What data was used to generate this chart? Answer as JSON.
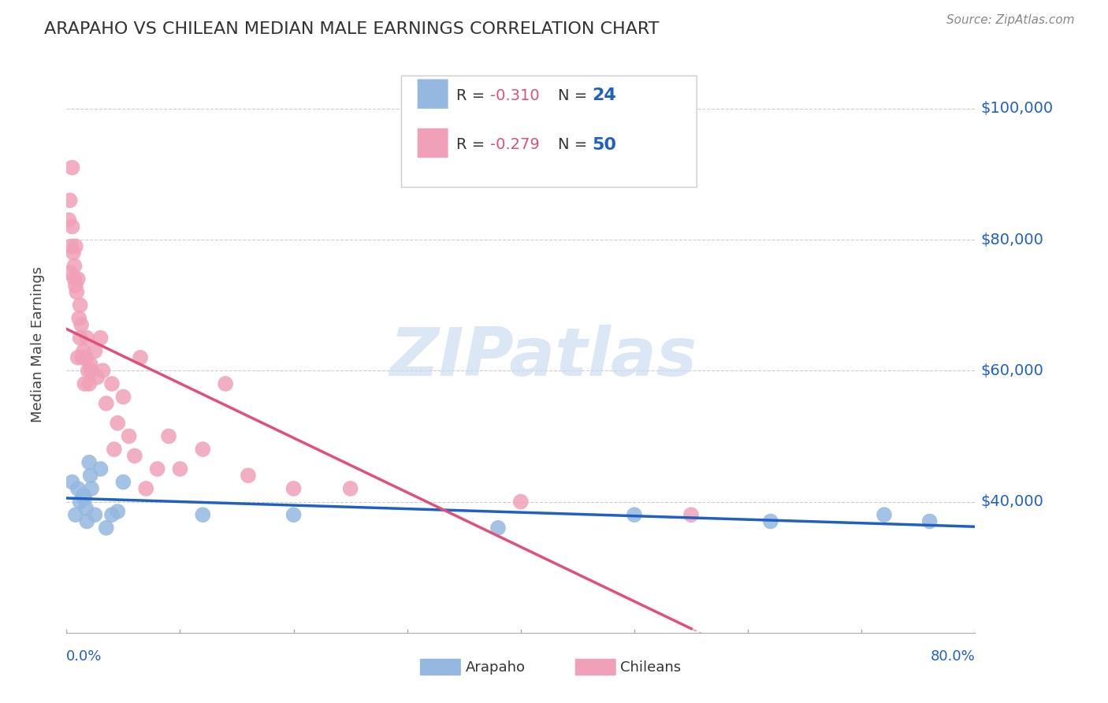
{
  "title": "ARAPAHO VS CHILEAN MEDIAN MALE EARNINGS CORRELATION CHART",
  "source": "Source: ZipAtlas.com",
  "ylabel": "Median Male Earnings",
  "y_ticks": [
    40000,
    60000,
    80000,
    100000
  ],
  "y_tick_labels": [
    "$40,000",
    "$60,000",
    "$80,000",
    "$100,000"
  ],
  "y_min": 20000,
  "y_max": 108000,
  "x_min": 0.0,
  "x_max": 0.8,
  "arapaho_color": "#94b8e0",
  "chilean_color": "#f0a0b8",
  "arapaho_line_color": "#2060c0",
  "chilean_line_color": "#e0507a",
  "R_arapaho": -0.31,
  "N_arapaho": 24,
  "R_chilean": -0.279,
  "N_chilean": 50,
  "arapaho_x": [
    0.005,
    0.008,
    0.01,
    0.012,
    0.015,
    0.016,
    0.017,
    0.018,
    0.02,
    0.021,
    0.022,
    0.025,
    0.03,
    0.035,
    0.04,
    0.045,
    0.05,
    0.12,
    0.2,
    0.38,
    0.5,
    0.62,
    0.72,
    0.76
  ],
  "arapaho_y": [
    43000,
    38000,
    42000,
    40000,
    41000,
    40500,
    39000,
    37000,
    46000,
    44000,
    42000,
    38000,
    45000,
    36000,
    38000,
    38500,
    43000,
    38000,
    38000,
    36000,
    38000,
    37000,
    38000,
    37000
  ],
  "chilean_x": [
    0.002,
    0.003,
    0.003,
    0.004,
    0.005,
    0.005,
    0.006,
    0.007,
    0.007,
    0.008,
    0.008,
    0.009,
    0.01,
    0.01,
    0.011,
    0.012,
    0.012,
    0.013,
    0.014,
    0.015,
    0.016,
    0.017,
    0.018,
    0.019,
    0.02,
    0.021,
    0.022,
    0.025,
    0.027,
    0.03,
    0.032,
    0.035,
    0.04,
    0.042,
    0.045,
    0.05,
    0.055,
    0.06,
    0.065,
    0.07,
    0.08,
    0.09,
    0.1,
    0.12,
    0.14,
    0.16,
    0.2,
    0.25,
    0.4,
    0.55
  ],
  "chilean_y": [
    83000,
    75000,
    86000,
    79000,
    91000,
    82000,
    78000,
    76000,
    74000,
    73000,
    79000,
    72000,
    62000,
    74000,
    68000,
    70000,
    65000,
    67000,
    62000,
    63000,
    58000,
    62000,
    65000,
    60000,
    58000,
    61000,
    60000,
    63000,
    59000,
    65000,
    60000,
    55000,
    58000,
    48000,
    52000,
    56000,
    50000,
    47000,
    62000,
    42000,
    45000,
    50000,
    45000,
    48000,
    58000,
    44000,
    42000,
    42000,
    40000,
    38000
  ],
  "background_color": "#ffffff",
  "grid_color": "#cccccc",
  "watermark_text": "ZIPatlas",
  "watermark_color": "#ccddf0",
  "legend_arapaho_label": "Arapaho",
  "legend_chilean_label": "Chileans"
}
